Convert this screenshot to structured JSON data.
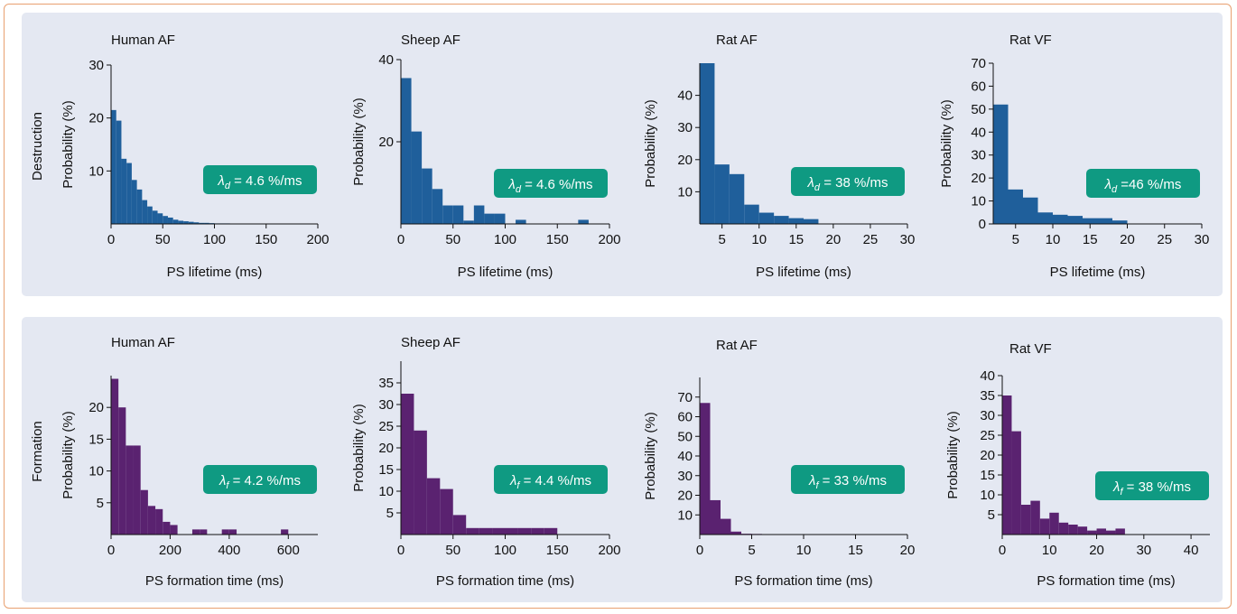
{
  "colors": {
    "destruction": "#1f5f9b",
    "formation": "#5a2270",
    "badge": "#0f9a82",
    "panel": "#e4e8f2",
    "border": "#e8a070"
  },
  "rows": [
    {
      "label": "Destruction"
    },
    {
      "label": "Formation"
    }
  ],
  "chart_data": [
    {
      "type": "bar",
      "title": "Human AF",
      "xlabel": "PS lifetime (ms)",
      "ylabel": "Probability (%)",
      "xlim": [
        0,
        200
      ],
      "ylim": [
        0,
        30
      ],
      "xticks": [
        0,
        50,
        100,
        150,
        200
      ],
      "yticks": [
        10,
        20,
        30
      ],
      "bin_width": 5,
      "bin_start": 0,
      "values": [
        21.5,
        19.5,
        12.3,
        11.5,
        8.3,
        6.5,
        4.5,
        3.3,
        2.5,
        2.0,
        1.5,
        1.2,
        0.8,
        0.6,
        0.5,
        0.4,
        0.3,
        0.2,
        0.2,
        0.15,
        0.1,
        0.1,
        0.1
      ],
      "annotation": {
        "sym": "λ",
        "sub": "d",
        "text": " = 4.6 %/ms"
      }
    },
    {
      "type": "bar",
      "title": "Sheep AF",
      "xlabel": "PS lifetime (ms)",
      "ylabel": "Probability (%)",
      "xlim": [
        0,
        200
      ],
      "ylim": [
        0,
        40
      ],
      "xticks": [
        0,
        50,
        100,
        150,
        200
      ],
      "yticks": [
        20,
        40
      ],
      "bin_width": 10,
      "bin_start": 0,
      "values": [
        35.5,
        22.5,
        13.5,
        8.5,
        4.5,
        4.5,
        0.8,
        4.5,
        2.5,
        2.5,
        0,
        1.0,
        0,
        0,
        0,
        0,
        0,
        1.0
      ],
      "annotation": {
        "sym": "λ",
        "sub": "d",
        "text": " = 4.6 %/ms"
      }
    },
    {
      "type": "bar",
      "title": "Rat AF",
      "xlabel": "PS lifetime (ms)",
      "ylabel": "Probability (%)",
      "xlim": [
        2,
        30
      ],
      "ylim": [
        0,
        50
      ],
      "xticks": [
        5,
        10,
        15,
        20,
        25,
        30
      ],
      "yticks": [
        10,
        20,
        30,
        40
      ],
      "bin_width": 2,
      "bin_start": 2,
      "values": [
        50,
        18.5,
        15.5,
        6,
        3.5,
        2.5,
        1.8,
        1.5
      ],
      "annotation": {
        "sym": "λ",
        "sub": "d",
        "text": " = 38 %/ms"
      }
    },
    {
      "type": "bar",
      "title": "Rat VF",
      "xlabel": "PS lifetime (ms)",
      "ylabel": "Probability (%)",
      "xlim": [
        2,
        30
      ],
      "ylim": [
        0,
        70
      ],
      "xticks": [
        5,
        10,
        15,
        20,
        25,
        30
      ],
      "yticks": [
        0,
        10,
        20,
        30,
        40,
        50,
        60,
        70
      ],
      "bin_width": 2,
      "bin_start": 2,
      "values": [
        52,
        15,
        11.5,
        5,
        4,
        3.5,
        2.5,
        2.5,
        1.5
      ],
      "annotation": {
        "sym": "λ",
        "sub": "d",
        "text": " =46 %/ms"
      }
    },
    {
      "type": "bar",
      "title": "Human AF",
      "xlabel": "PS formation time (ms)",
      "ylabel": "Probability (%)",
      "xlim": [
        0,
        700
      ],
      "ylim": [
        0,
        25
      ],
      "xticks": [
        0,
        200,
        400,
        600
      ],
      "yticks": [
        5,
        10,
        15,
        20
      ],
      "bin_width": 25,
      "bin_start": 0,
      "values": [
        24.5,
        20,
        14,
        14,
        7,
        4.5,
        4,
        2,
        1.5,
        0,
        0,
        0.8,
        0.8,
        0,
        0,
        0.8,
        0.8,
        0,
        0,
        0,
        0,
        0,
        0,
        0.8
      ],
      "annotation": {
        "sym": "λ",
        "sub": "f",
        "text": " = 4.2 %/ms"
      }
    },
    {
      "type": "bar",
      "title": "Sheep AF",
      "xlabel": "PS formation time (ms)",
      "ylabel": "Probability (%)",
      "xlim": [
        0,
        200
      ],
      "ylim": [
        0,
        40
      ],
      "xticks": [
        0,
        50,
        100,
        150,
        200
      ],
      "yticks": [
        5,
        10,
        15,
        20,
        25,
        30,
        35
      ],
      "bin_width": 12.5,
      "bin_start": 0,
      "values": [
        32.5,
        24,
        13,
        10.5,
        4.5,
        1.5,
        1.5,
        1.5,
        1.5,
        1.5,
        1.5,
        1.5
      ],
      "annotation": {
        "sym": "λ",
        "sub": "f",
        "text": " = 4.4 %/ms"
      }
    },
    {
      "type": "bar",
      "title": "Rat AF",
      "xlabel": "PS formation time (ms)",
      "ylabel": "Probability (%)",
      "xlim": [
        0,
        20
      ],
      "ylim": [
        0,
        80
      ],
      "xticks": [
        0,
        5,
        10,
        15,
        20
      ],
      "yticks": [
        10,
        20,
        30,
        40,
        50,
        60,
        70
      ],
      "bin_width": 1,
      "bin_start": 0,
      "values": [
        67,
        17.5,
        8,
        1.5,
        0.4,
        0.3,
        0.2,
        0.1
      ],
      "annotation": {
        "sym": "λ",
        "sub": "f",
        "text": " = 33 %/ms"
      }
    },
    {
      "type": "bar",
      "title": "Rat VF",
      "xlabel": "PS formation time (ms)",
      "ylabel": "Probability (%)",
      "xlim": [
        0,
        44
      ],
      "ylim": [
        0,
        40
      ],
      "xticks": [
        0,
        10,
        20,
        30,
        40
      ],
      "yticks": [
        5,
        10,
        15,
        20,
        25,
        30,
        35,
        40
      ],
      "bin_width": 2,
      "bin_start": 0,
      "values": [
        35,
        26,
        7.5,
        8.5,
        4,
        5.5,
        3,
        2.5,
        2,
        1,
        1.5,
        1,
        1.5
      ],
      "annotation": {
        "sym": "λ",
        "sub": "f",
        "text": " = 38 %/ms"
      }
    }
  ]
}
